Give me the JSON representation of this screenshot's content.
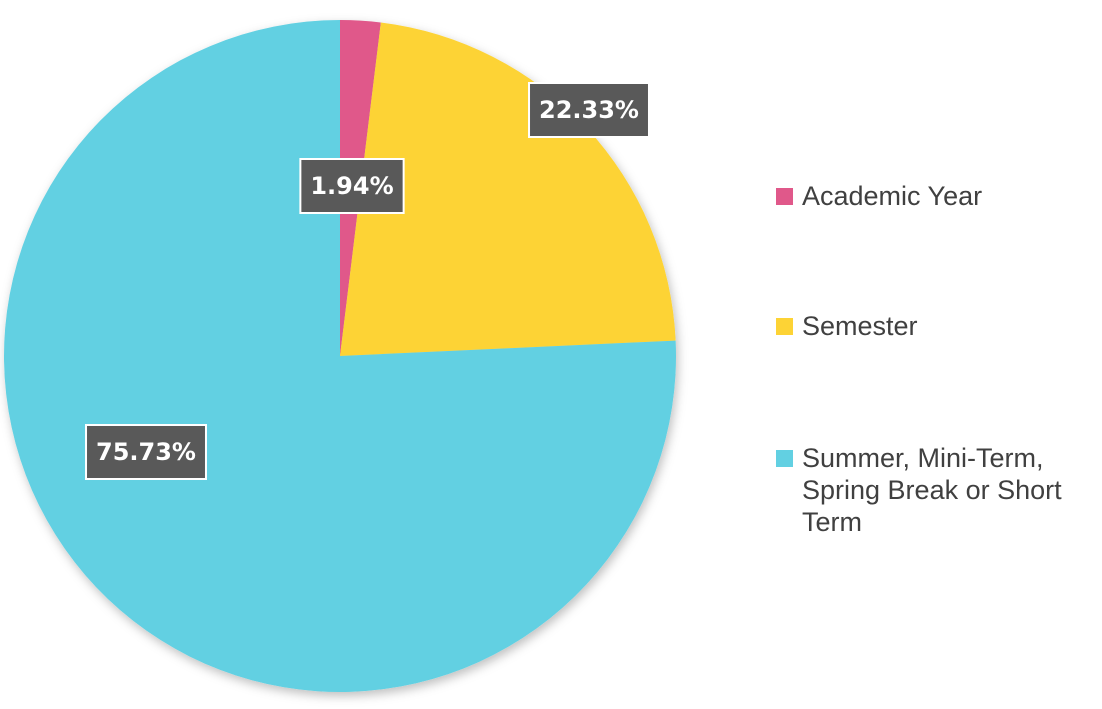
{
  "chart_data": {
    "type": "pie",
    "categories": [
      "Academic Year",
      "Semester",
      "Summer, Mini-Term, Spring Break or Short Term"
    ],
    "values": [
      1.94,
      22.33,
      75.73
    ],
    "value_labels": [
      "1.94%",
      "22.33%",
      "75.73%"
    ],
    "colors": [
      "#e0588a",
      "#fdd335",
      "#62d0e2"
    ],
    "legend": "right"
  }
}
